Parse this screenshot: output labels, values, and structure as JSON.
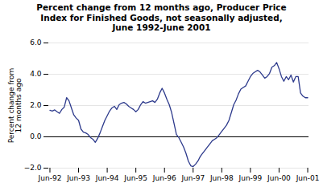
{
  "chart_data": {
    "type": "line",
    "title": "Percent change from 12 months ago, Producer Price\nIndex for Finished Goods, not seasonally adjusted,\nJune 1992-June 2001",
    "ylabel": "Percent change from\n12 months ago",
    "color": "#2d3a8c",
    "categories": [
      "Jun-92",
      null,
      null,
      null,
      null,
      null,
      null,
      null,
      null,
      null,
      null,
      null,
      "Jun-93",
      null,
      null,
      null,
      null,
      null,
      null,
      null,
      null,
      null,
      null,
      null,
      "Jun-94",
      null,
      null,
      null,
      null,
      null,
      null,
      null,
      null,
      null,
      null,
      null,
      "Jun-95",
      null,
      null,
      null,
      null,
      null,
      null,
      null,
      null,
      null,
      null,
      null,
      "Jun-96",
      null,
      null,
      null,
      null,
      null,
      null,
      null,
      null,
      null,
      null,
      null,
      "Jun-97",
      null,
      null,
      null,
      null,
      null,
      null,
      null,
      null,
      null,
      null,
      null,
      "Jun-98",
      null,
      null,
      null,
      null,
      null,
      null,
      null,
      null,
      null,
      null,
      null,
      "Jun-99",
      null,
      null,
      null,
      null,
      null,
      null,
      null,
      null,
      null,
      null,
      null,
      "Jun-00",
      null,
      null,
      null,
      null,
      null,
      null,
      null,
      null,
      null,
      null,
      null,
      "Jun-01"
    ],
    "values": [
      1.7,
      1.65,
      1.72,
      1.6,
      1.5,
      1.75,
      1.9,
      2.5,
      2.3,
      1.85,
      1.4,
      1.2,
      1.05,
      0.5,
      0.3,
      0.25,
      0.15,
      -0.05,
      -0.15,
      -0.35,
      -0.1,
      0.25,
      0.65,
      1.05,
      1.35,
      1.65,
      1.85,
      1.95,
      1.75,
      2.05,
      2.15,
      2.2,
      2.1,
      1.95,
      1.85,
      1.75,
      1.6,
      1.75,
      2.05,
      2.25,
      2.15,
      2.2,
      2.25,
      2.3,
      2.2,
      2.4,
      2.8,
      3.1,
      2.8,
      2.4,
      2.05,
      1.55,
      0.85,
      0.15,
      -0.05,
      -0.35,
      -0.65,
      -1.05,
      -1.55,
      -1.85,
      -1.9,
      -1.75,
      -1.55,
      -1.25,
      -1.05,
      -0.85,
      -0.65,
      -0.45,
      -0.25,
      -0.15,
      -0.05,
      0.15,
      0.35,
      0.55,
      0.75,
      1.05,
      1.55,
      2.05,
      2.35,
      2.75,
      3.05,
      3.15,
      3.25,
      3.55,
      3.85,
      4.05,
      4.15,
      4.25,
      4.15,
      3.95,
      3.75,
      3.85,
      4.05,
      4.45,
      4.55,
      4.75,
      4.35,
      3.85,
      3.55,
      3.85,
      3.65,
      3.95,
      3.5,
      3.85,
      3.85,
      2.8,
      2.6,
      2.5,
      2.5
    ],
    "ylim": [
      -2.0,
      6.0
    ],
    "yticks": [
      {
        "value": -2.0,
        "label": "−2.0"
      },
      {
        "value": 0.0,
        "label": "0.0"
      },
      {
        "value": 2.0,
        "label": "2.0"
      },
      {
        "value": 4.0,
        "label": "4.0"
      },
      {
        "value": 6.0,
        "label": "6.0"
      }
    ],
    "grid": true
  }
}
